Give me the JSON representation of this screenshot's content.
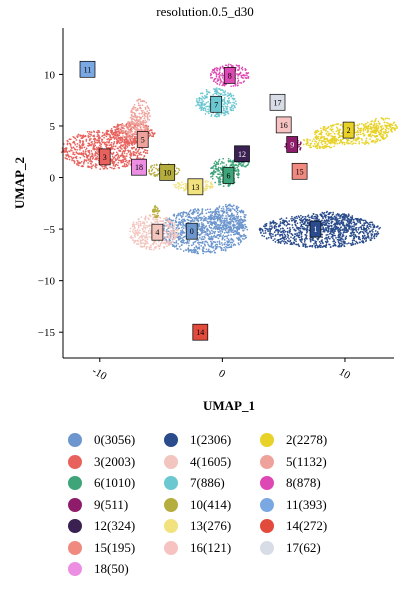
{
  "chart_data": {
    "type": "scatter",
    "title": "resolution.0.5_d30",
    "xlabel": "UMAP_1",
    "ylabel": "UMAP_2",
    "xlim": [
      -13,
      14
    ],
    "ylim": [
      -17.5,
      14.5
    ],
    "x_ticks": [
      -10,
      0,
      10
    ],
    "x_tick_labels": [
      "-10",
      "0",
      "10"
    ],
    "y_ticks": [
      -15,
      -10,
      -5,
      0,
      5,
      10
    ],
    "y_tick_labels": [
      "−15",
      "−10",
      "−5",
      "0",
      "5",
      "10"
    ],
    "grid": false,
    "legend_position": "bottom",
    "clusters": [
      {
        "id": "0",
        "count": 3056,
        "color": "#6C96CD",
        "label_x": -2.5,
        "label_y": -5.2
      },
      {
        "id": "1",
        "count": 2306,
        "color": "#2A4C8C",
        "label_x": 7.6,
        "label_y": -5.0
      },
      {
        "id": "2",
        "count": 2278,
        "color": "#E8D227",
        "label_x": 10.3,
        "label_y": 4.6
      },
      {
        "id": "3",
        "count": 2003,
        "color": "#E8615C",
        "label_x": -9.6,
        "label_y": 2.0
      },
      {
        "id": "4",
        "count": 1605,
        "color": "#F2C5BE",
        "label_x": -5.3,
        "label_y": -5.3
      },
      {
        "id": "5",
        "count": 1132,
        "color": "#EEA29B",
        "label_x": -6.5,
        "label_y": 3.7
      },
      {
        "id": "6",
        "count": 1010,
        "color": "#3EA47A",
        "label_x": 0.5,
        "label_y": 0.2
      },
      {
        "id": "7",
        "count": 886,
        "color": "#6BC7D0",
        "label_x": -0.5,
        "label_y": 7.1
      },
      {
        "id": "8",
        "count": 878,
        "color": "#DE48B4",
        "label_x": 0.6,
        "label_y": 9.9
      },
      {
        "id": "9",
        "count": 511,
        "color": "#8F1C6B",
        "label_x": 5.7,
        "label_y": 3.2
      },
      {
        "id": "10",
        "count": 414,
        "color": "#B5AD3E",
        "label_x": -4.5,
        "label_y": 0.5
      },
      {
        "id": "11",
        "count": 393,
        "color": "#7AA8E3",
        "label_x": -11.0,
        "label_y": 10.5
      },
      {
        "id": "12",
        "count": 324,
        "color": "#3A2151",
        "label_x": 1.6,
        "label_y": 2.3
      },
      {
        "id": "13",
        "count": 276,
        "color": "#F2E27E",
        "label_x": -2.2,
        "label_y": -0.9
      },
      {
        "id": "14",
        "count": 272,
        "color": "#E24A3C",
        "label_x": -1.8,
        "label_y": -15.0
      },
      {
        "id": "15",
        "count": 195,
        "color": "#F08A80",
        "label_x": 6.3,
        "label_y": 0.6
      },
      {
        "id": "16",
        "count": 121,
        "color": "#F6C3C2",
        "label_x": 5.0,
        "label_y": 5.1
      },
      {
        "id": "17",
        "count": 62,
        "color": "#D8DCE6",
        "label_x": 4.5,
        "label_y": 7.3
      },
      {
        "id": "18",
        "count": 50,
        "color": "#EC8FE3",
        "label_x": -6.8,
        "label_y": 1.0
      }
    ],
    "legend": [
      {
        "label": "0(3056)",
        "color": "#6C96CD"
      },
      {
        "label": "1(2306)",
        "color": "#2A4C8C"
      },
      {
        "label": "2(2278)",
        "color": "#E8D227"
      },
      {
        "label": "3(2003)",
        "color": "#E8615C"
      },
      {
        "label": "4(1605)",
        "color": "#F2C5BE"
      },
      {
        "label": "5(1132)",
        "color": "#EEA29B"
      },
      {
        "label": "6(1010)",
        "color": "#3EA47A"
      },
      {
        "label": "7(886)",
        "color": "#6BC7D0"
      },
      {
        "label": "8(878)",
        "color": "#DE48B4"
      },
      {
        "label": "9(511)",
        "color": "#8F1C6B"
      },
      {
        "label": "10(414)",
        "color": "#B5AD3E"
      },
      {
        "label": "11(393)",
        "color": "#7AA8E3"
      },
      {
        "label": "12(324)",
        "color": "#3A2151"
      },
      {
        "label": "13(276)",
        "color": "#F2E27E"
      },
      {
        "label": "14(272)",
        "color": "#E24A3C"
      },
      {
        "label": "15(195)",
        "color": "#F08A80"
      },
      {
        "label": "16(121)",
        "color": "#F6C3C2"
      },
      {
        "label": "17(62)",
        "color": "#D8DCE6"
      },
      {
        "label": "18(50)",
        "color": "#EC8FE3"
      }
    ]
  }
}
